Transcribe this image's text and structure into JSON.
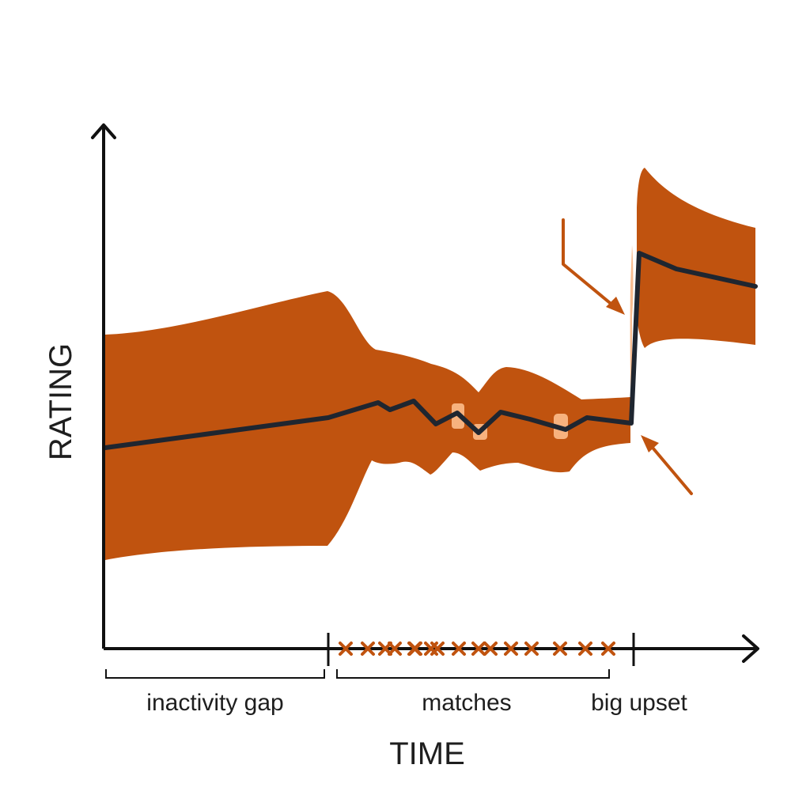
{
  "axes": {
    "y_label": "RATING",
    "x_label": "TIME"
  },
  "segments": {
    "inactivity": "inactivity gap",
    "matches": "matches",
    "upset": "big upset"
  },
  "match_marker_count": 16,
  "colors": {
    "band": "#c0530f",
    "band_highlight": "#f7b27e",
    "rating_line": "#1f2630",
    "axis": "#111111",
    "match_marker": "#c0530f",
    "annotation_arrow": "#c0530f",
    "background": "#ffffff"
  },
  "icons": {
    "y_axis_end": "arrow-up-icon",
    "x_axis_end": "arrow-right-icon",
    "annotation": "arrow-icon",
    "match_marker": "x-mark-icon"
  }
}
